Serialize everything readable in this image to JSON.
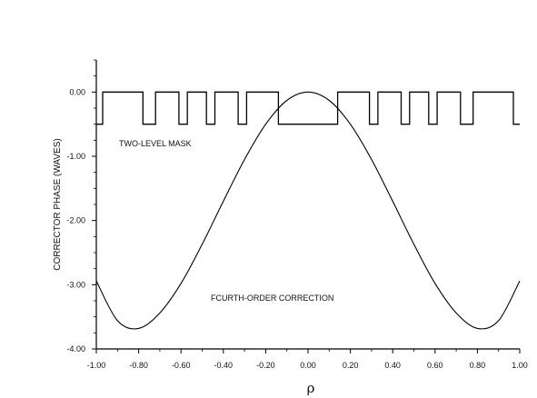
{
  "chart_data": {
    "type": "line",
    "title": "",
    "xlabel": "ρ",
    "ylabel": "CORRECTOR PHASE (WAVES)",
    "xlim": [
      -1.0,
      1.0
    ],
    "ylim": [
      -4.0,
      0.5
    ],
    "xticks": [
      "-1.00",
      "-0.80",
      "-0.60",
      "-0.40",
      "-0.20",
      "0.00",
      "0.20",
      "0.40",
      "0.60",
      "0.80",
      "1.00"
    ],
    "yticks": [
      "0.00",
      "-1.00",
      "-2.00",
      "-3.00",
      "-4.00"
    ],
    "grid": false,
    "series": [
      {
        "name": "TWO-LEVEL MASK",
        "style": "step",
        "levels": [
          0.0,
          -0.5
        ],
        "transitions": [
          -0.97,
          -0.78,
          -0.72,
          -0.61,
          -0.57,
          -0.48,
          -0.44,
          -0.33,
          -0.29,
          -0.14,
          0.14,
          0.29,
          0.33,
          0.44,
          0.48,
          0.57,
          0.61,
          0.72,
          0.78,
          0.97
        ],
        "values_between": [
          -0.5,
          0.0,
          -0.5,
          0.0,
          -0.5,
          0.0,
          -0.5,
          0.0,
          -0.5,
          0.0,
          -0.5,
          0.0,
          -0.5,
          0.0,
          -0.5,
          0.0,
          -0.5,
          0.0,
          -0.5,
          0.0,
          -0.5
        ]
      },
      {
        "name": "FOURTH-ORDER CORRECTION",
        "style": "curve",
        "x": [
          -1.0,
          -0.9,
          -0.8,
          -0.7,
          -0.6,
          -0.5,
          -0.4,
          -0.3,
          -0.2,
          -0.1,
          0.0,
          0.1,
          0.2,
          0.3,
          0.4,
          0.5,
          0.6,
          0.7,
          0.8,
          0.9,
          1.0
        ],
        "y": [
          -2.94,
          -3.56,
          -3.68,
          -3.44,
          -2.98,
          -2.37,
          -1.7,
          -1.05,
          -0.5,
          -0.13,
          0.0,
          -0.13,
          -0.5,
          -1.05,
          -1.7,
          -2.37,
          -2.98,
          -3.44,
          -3.68,
          -3.56,
          -2.94
        ]
      }
    ],
    "annotations": [
      {
        "text": "TWO-LEVEL MASK"
      },
      {
        "text": "FCURTH-ORDER CORRECTION"
      }
    ],
    "colors": {
      "line": "#000000",
      "axis": "#000000"
    }
  }
}
